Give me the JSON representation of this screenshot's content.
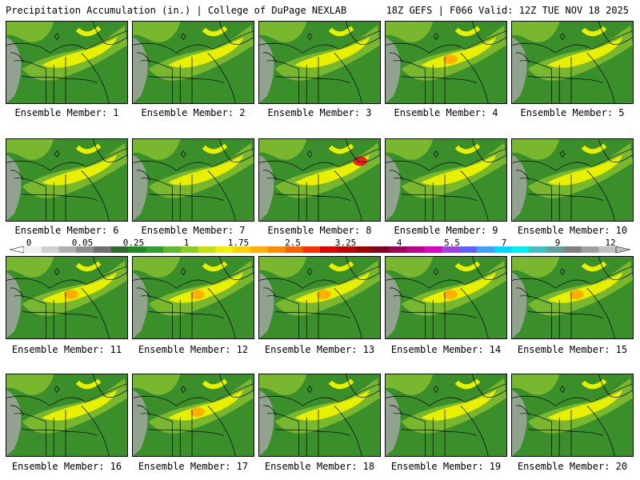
{
  "header": {
    "left_title": "Precipitation Accumulation (in.) | College of DuPage NEXLAB",
    "right_title": "18Z GEFS | F066 Valid: 12Z TUE NOV 18 2025"
  },
  "panels": [
    {
      "label": "Ensemble Member: 1",
      "peak": "yellow"
    },
    {
      "label": "Ensemble Member: 2",
      "peak": "yellow"
    },
    {
      "label": "Ensemble Member: 3",
      "peak": "yellow"
    },
    {
      "label": "Ensemble Member: 4",
      "peak": "orange"
    },
    {
      "label": "Ensemble Member: 5",
      "peak": "yellow"
    },
    {
      "label": "Ensemble Member: 6",
      "peak": "yellow"
    },
    {
      "label": "Ensemble Member: 7",
      "peak": "yellow"
    },
    {
      "label": "Ensemble Member: 8",
      "peak": "red"
    },
    {
      "label": "Ensemble Member: 9",
      "peak": "yellow"
    },
    {
      "label": "Ensemble Member: 10",
      "peak": "yellow"
    },
    {
      "label": "Ensemble Member: 11",
      "peak": "orange"
    },
    {
      "label": "Ensemble Member: 12",
      "peak": "orange"
    },
    {
      "label": "Ensemble Member: 13",
      "peak": "orange"
    },
    {
      "label": "Ensemble Member: 14",
      "peak": "orange"
    },
    {
      "label": "Ensemble Member: 15",
      "peak": "orange"
    },
    {
      "label": "Ensemble Member: 16",
      "peak": "yellow"
    },
    {
      "label": "Ensemble Member: 17",
      "peak": "orange"
    },
    {
      "label": "Ensemble Member: 18",
      "peak": "yellow"
    },
    {
      "label": "Ensemble Member: 19",
      "peak": "yellow"
    },
    {
      "label": "Ensemble Member: 20",
      "peak": "yellow"
    }
  ],
  "colorbar": {
    "labels": [
      "0",
      "0.05",
      "0.25",
      "1",
      "1.75",
      "2.5",
      "3.25",
      "4",
      "5.5",
      "7",
      "9",
      "12"
    ],
    "colors": [
      "#f0f0f0",
      "#d0d0d0",
      "#b0b0b0",
      "#909090",
      "#707070",
      "#2f6b2f",
      "#1f8a1f",
      "#2fa02f",
      "#5fb82f",
      "#8ccc1f",
      "#c4e00f",
      "#f0f000",
      "#ffd000",
      "#ffb000",
      "#ff8c00",
      "#ff6000",
      "#ff3000",
      "#e00000",
      "#c00000",
      "#a00000",
      "#800020",
      "#a0005a",
      "#c0008a",
      "#e000c0",
      "#a040e0",
      "#6060ff",
      "#40a0ff",
      "#00d8ff",
      "#00f0f0",
      "#40c0c0",
      "#60a0a0",
      "#808080",
      "#a0a0a0",
      "#c0c0c0"
    ]
  },
  "legend_colors": {
    "base": "#3a8f2a",
    "light": "#79b82e",
    "yellow": "#e8f000",
    "orange": "#ffb000",
    "red": "#e82020",
    "gray": "#a8a8a8"
  }
}
